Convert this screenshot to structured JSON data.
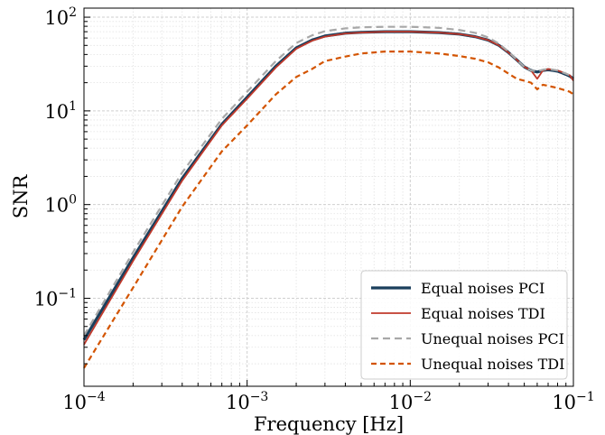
{
  "chart_data": {
    "type": "line",
    "title": "",
    "xlabel": "Frequency [Hz]",
    "ylabel": "SNR",
    "xscale": "log",
    "yscale": "log",
    "xlim": [
      0.0001,
      0.1
    ],
    "ylim": [
      0.0115,
      125
    ],
    "x_ticks": [
      {
        "value": 0.0001,
        "base": "10",
        "exp": "−4"
      },
      {
        "value": 0.001,
        "base": "10",
        "exp": "−3"
      },
      {
        "value": 0.01,
        "base": "10",
        "exp": "−2"
      },
      {
        "value": 0.1,
        "base": "10",
        "exp": "−1"
      }
    ],
    "y_ticks": [
      {
        "value": 0.1,
        "base": "10",
        "exp": "−1"
      },
      {
        "value": 1,
        "base": "10",
        "exp": "0"
      },
      {
        "value": 10,
        "base": "10",
        "exp": "1"
      },
      {
        "value": 100,
        "base": "10",
        "exp": "2"
      }
    ],
    "grid": true,
    "legend_position": "bottom-right",
    "x": [
      0.0001,
      0.0002,
      0.0004,
      0.0007,
      0.001,
      0.0015,
      0.002,
      0.0025,
      0.003,
      0.004,
      0.005,
      0.007,
      0.01,
      0.015,
      0.02,
      0.025,
      0.03,
      0.035,
      0.04,
      0.045,
      0.05,
      0.055,
      0.06,
      0.065,
      0.07,
      0.075,
      0.08,
      0.085,
      0.09,
      0.095,
      0.1
    ],
    "series": [
      {
        "name": "Equal noises PCI",
        "color": "#1b3f5c",
        "dash": "solid",
        "width": 3.2,
        "values": [
          0.036,
          0.27,
          1.9,
          7.2,
          14.0,
          30,
          47,
          57,
          63,
          67.5,
          69,
          70,
          70,
          68.5,
          66,
          62,
          57,
          50,
          42,
          35,
          29.5,
          27,
          26,
          27,
          27.5,
          27,
          26.5,
          25.5,
          24.5,
          23.5,
          22
        ]
      },
      {
        "name": "Equal noises TDI",
        "color": "#c0392b",
        "dash": "solid",
        "width": 1.8,
        "values": [
          0.032,
          0.25,
          1.8,
          7.0,
          13.5,
          29,
          46,
          56,
          62,
          67,
          68.5,
          70,
          70,
          68.5,
          66,
          62,
          57,
          50,
          42,
          35,
          29.5,
          27,
          22,
          27,
          28,
          27.5,
          27,
          26,
          25,
          24,
          21
        ]
      },
      {
        "name": "Unequal noises PCI",
        "color": "#a8a8a8",
        "dash": "8,5",
        "width": 2.2,
        "values": [
          0.04,
          0.31,
          2.2,
          8.2,
          16.0,
          34,
          53,
          64,
          71,
          76,
          78,
          79,
          79,
          77,
          73,
          68,
          61,
          52,
          43,
          35,
          29.5,
          27,
          26.5,
          27.5,
          28,
          27.5,
          27,
          26,
          25,
          24,
          23
        ]
      },
      {
        "name": "Unequal noises TDI",
        "color": "#d35400",
        "dash": "6,4",
        "width": 2.2,
        "values": [
          0.018,
          0.13,
          0.95,
          3.7,
          7.0,
          15,
          23,
          28,
          34,
          38,
          41,
          43,
          43,
          41,
          38.5,
          36,
          33,
          29,
          25,
          22,
          21,
          20,
          17,
          19,
          18.5,
          18,
          17.5,
          17,
          16.5,
          16,
          15
        ]
      }
    ]
  }
}
